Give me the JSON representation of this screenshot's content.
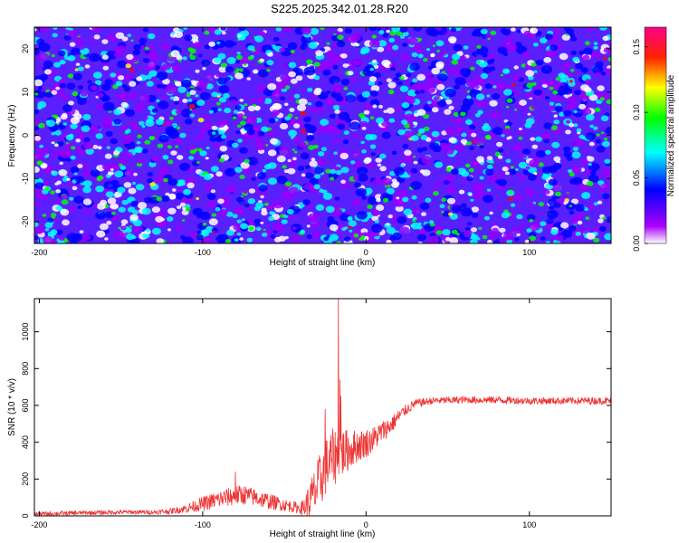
{
  "title": "S225.2025.342.01.28.R20",
  "colors": {
    "line": "#ee3333",
    "frame": "#000000"
  },
  "chart_data": [
    {
      "type": "heatmap",
      "xlabel": "Height of straight line (km)",
      "ylabel": "Frequency (Hz)",
      "xlim": [
        -203,
        150
      ],
      "ylim": [
        -25,
        25
      ],
      "x_ticks": [
        -200,
        -100,
        0,
        100
      ],
      "y_ticks": [
        -20,
        -10,
        0,
        10,
        20
      ],
      "colorbar": {
        "label": "Normalized spectral amplitude",
        "range": [
          0,
          0.165
        ],
        "ticks": [
          "0.00",
          "0.05",
          "0.10",
          "0.15"
        ],
        "tick_values": [
          0,
          0.05,
          0.1,
          0.15
        ],
        "colormap": [
          "#ffffff",
          "#9900ff",
          "#0000ff",
          "#00ffff",
          "#00ff00",
          "#ffff00",
          "#ff0000",
          "#ff00aa"
        ]
      },
      "field": {
        "mean": 0.045,
        "max": 0.16,
        "note": "noise-like speckle"
      }
    },
    {
      "type": "line",
      "xlabel": "Height of straight line (km)",
      "ylabel": "SNR (10 * v/v)",
      "xlim": [
        -203,
        150
      ],
      "ylim": [
        0,
        1180
      ],
      "x_ticks": [
        -200,
        -100,
        0,
        100
      ],
      "y_ticks": [
        0,
        200,
        400,
        600,
        800,
        1000
      ],
      "series": [
        {
          "name": "SNR",
          "x": [
            -203,
            -180,
            -150,
            -130,
            -120,
            -110,
            -100,
            -90,
            -80,
            -75,
            -70,
            -60,
            -50,
            -40,
            -36,
            -30,
            -25,
            -20,
            -17,
            -15,
            -10,
            -5,
            0,
            5,
            10,
            15,
            20,
            25,
            30,
            40,
            60,
            80,
            100,
            120,
            140,
            150
          ],
          "base": [
            10,
            15,
            20,
            20,
            25,
            40,
            65,
            90,
            110,
            115,
            105,
            80,
            60,
            40,
            60,
            150,
            260,
            320,
            330,
            340,
            360,
            380,
            395,
            420,
            460,
            490,
            540,
            580,
            610,
            625,
            630,
            630,
            625,
            625,
            625,
            625
          ],
          "noise": [
            12,
            12,
            12,
            12,
            15,
            25,
            40,
            50,
            55,
            55,
            50,
            45,
            35,
            30,
            90,
            150,
            160,
            160,
            150,
            140,
            110,
            90,
            80,
            70,
            60,
            50,
            40,
            30,
            25,
            20,
            20,
            20,
            20,
            20,
            20,
            20
          ],
          "peaks": [
            {
              "x": -17,
              "y": 1180
            },
            {
              "x": -16,
              "y": 740
            },
            {
              "x": -15.5,
              "y": 650
            },
            {
              "x": -25,
              "y": 580
            },
            {
              "x": -80,
              "y": 240
            }
          ]
        }
      ]
    }
  ]
}
